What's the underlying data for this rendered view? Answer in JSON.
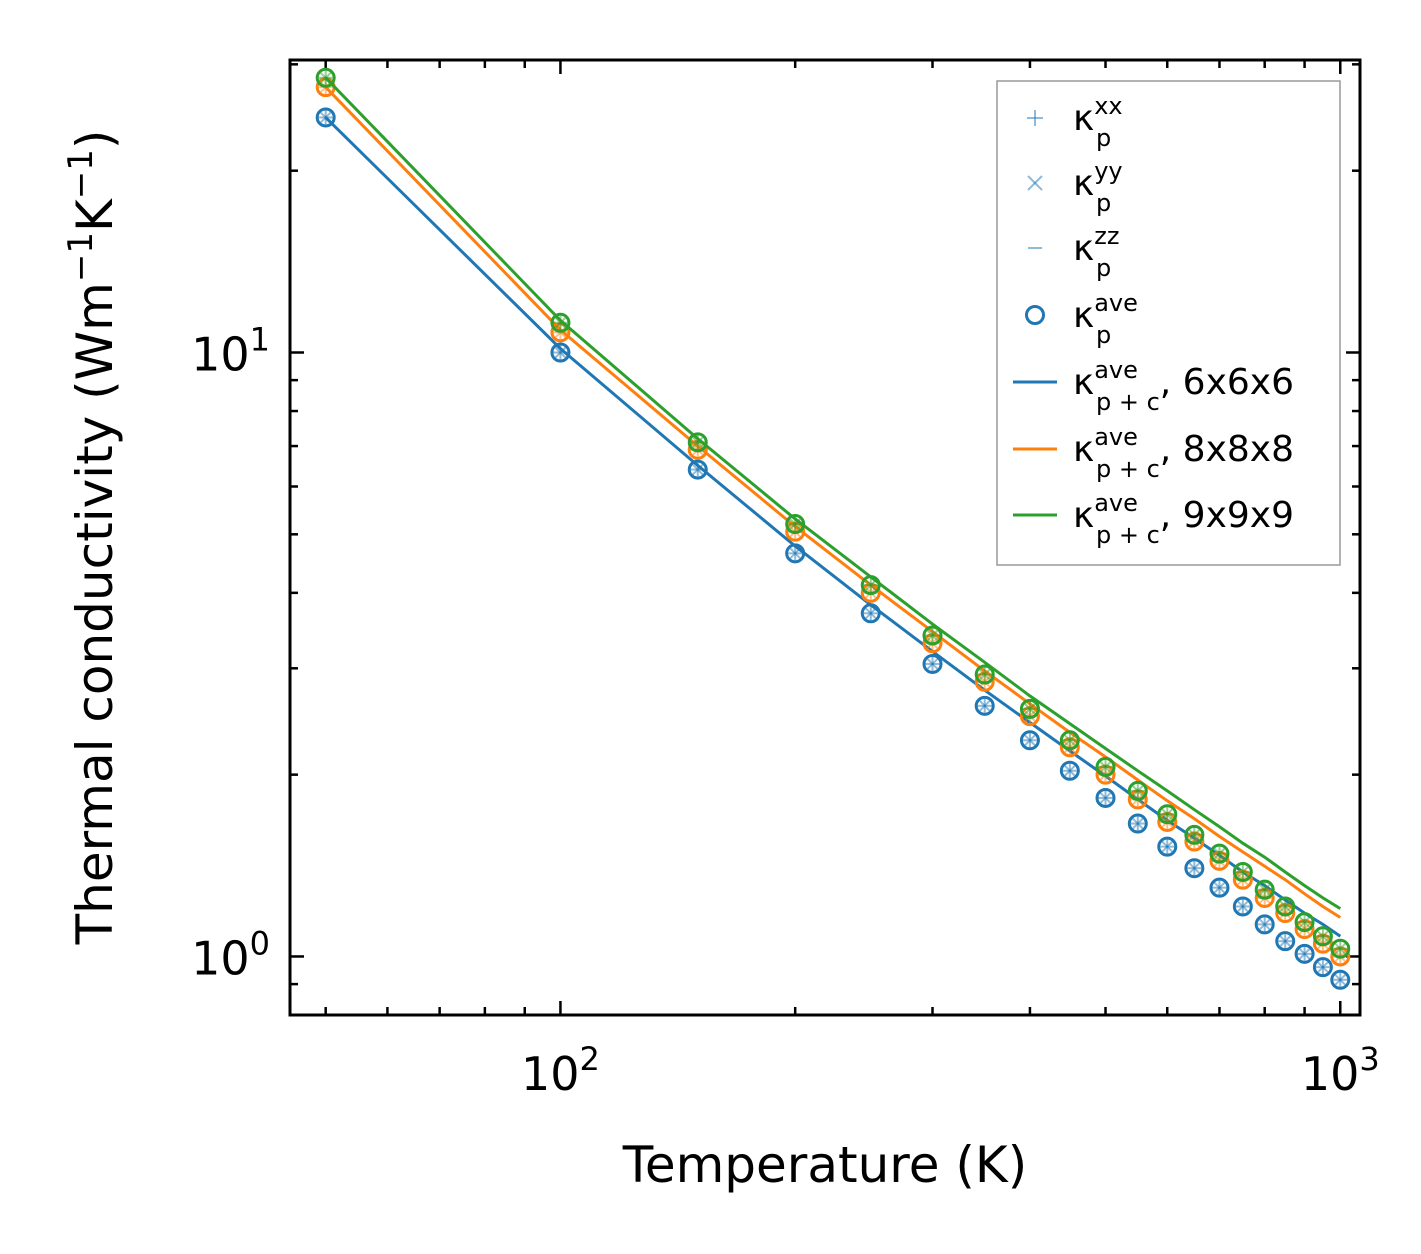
{
  "chart_data": {
    "type": "line",
    "xscale": "log",
    "yscale": "log",
    "xlabel": "Temperature (K)",
    "ylabel": "Thermal conductivity (Wm",
    "ylabel_sup1": "−1",
    "ylabel_mid": "K",
    "ylabel_sup2": "−1",
    "ylabel_end": ")",
    "xlim": [
      45,
      1060
    ],
    "ylim": [
      0.8,
      30.5
    ],
    "x_ticks": [
      {
        "base": "10",
        "exp": "2",
        "value": 100
      },
      {
        "base": "10",
        "exp": "3",
        "value": 1000
      }
    ],
    "y_ticks": [
      {
        "base": "10",
        "exp": "0",
        "value": 1
      },
      {
        "base": "10",
        "exp": "1",
        "value": 10
      }
    ],
    "x": [
      50,
      100,
      150,
      200,
      250,
      300,
      350,
      400,
      450,
      500,
      550,
      600,
      650,
      700,
      750,
      800,
      850,
      900,
      950,
      1000
    ],
    "series": [
      {
        "name": "6x6x6",
        "color": "#1f77b4",
        "points": [
          24.5,
          10.0,
          6.4,
          4.65,
          3.7,
          3.05,
          2.6,
          2.28,
          2.03,
          1.83,
          1.66,
          1.52,
          1.4,
          1.3,
          1.21,
          1.13,
          1.06,
          1.01,
          0.96,
          0.915
        ],
        "line": [
          24.5,
          10.15,
          6.5,
          4.78,
          3.82,
          3.2,
          2.76,
          2.44,
          2.19,
          1.99,
          1.82,
          1.68,
          1.57,
          1.47,
          1.38,
          1.31,
          1.24,
          1.18,
          1.13,
          1.08
        ]
      },
      {
        "name": "8x8x8",
        "color": "#ff7f0e",
        "points": [
          27.5,
          10.8,
          6.9,
          5.05,
          4.0,
          3.3,
          2.85,
          2.5,
          2.22,
          2.0,
          1.82,
          1.67,
          1.55,
          1.44,
          1.34,
          1.25,
          1.18,
          1.11,
          1.05,
          1.0
        ],
        "line": [
          27.5,
          10.9,
          7.0,
          5.15,
          4.12,
          3.45,
          2.97,
          2.62,
          2.35,
          2.14,
          1.96,
          1.81,
          1.69,
          1.58,
          1.49,
          1.41,
          1.34,
          1.27,
          1.21,
          1.16
        ]
      },
      {
        "name": "9x9x9",
        "color": "#2ca02c",
        "points": [
          28.5,
          11.2,
          7.1,
          5.2,
          4.12,
          3.4,
          2.93,
          2.57,
          2.28,
          2.06,
          1.88,
          1.72,
          1.59,
          1.48,
          1.38,
          1.29,
          1.21,
          1.14,
          1.08,
          1.03
        ],
        "line": [
          28.5,
          11.3,
          7.2,
          5.3,
          4.25,
          3.55,
          3.07,
          2.7,
          2.43,
          2.21,
          2.03,
          1.88,
          1.75,
          1.64,
          1.54,
          1.46,
          1.38,
          1.31,
          1.25,
          1.2
        ]
      }
    ],
    "legend": {
      "position": "top-right",
      "entries": [
        {
          "marker": "+",
          "symbol": "κ",
          "sub": "p",
          "sup": "xx",
          "suffix": ""
        },
        {
          "marker": "×",
          "symbol": "κ",
          "sub": "p",
          "sup": "yy",
          "suffix": ""
        },
        {
          "marker": "−",
          "symbol": "κ",
          "sub": "p",
          "sup": "zz",
          "suffix": ""
        },
        {
          "marker": "o",
          "symbol": "κ",
          "sub": "p",
          "sup": "ave",
          "suffix": ""
        },
        {
          "marker": "line-6x6x6",
          "symbol": "κ",
          "sub": "p + c",
          "sup": "ave",
          "suffix": ", 6x6x6"
        },
        {
          "marker": "line-8x8x8",
          "symbol": "κ",
          "sub": "p + c",
          "sup": "ave",
          "suffix": ", 8x8x8"
        },
        {
          "marker": "line-9x9x9",
          "symbol": "κ",
          "sub": "p + c",
          "sup": "ave",
          "suffix": ", 9x9x9"
        }
      ]
    }
  }
}
